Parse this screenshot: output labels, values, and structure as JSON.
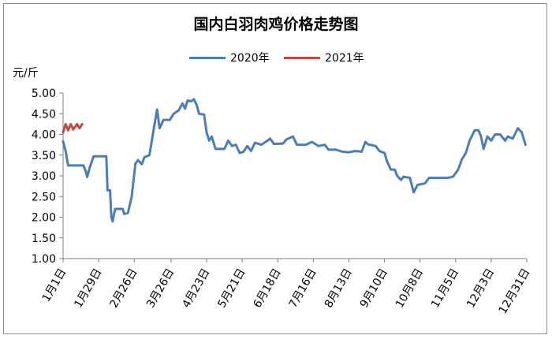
{
  "chart_data": {
    "type": "line",
    "title": "国内白羽肉鸡价格走势图",
    "ylabel": "元/斤",
    "xlabel": "",
    "ylim": [
      1.0,
      5.0
    ],
    "yticks": [
      "1.00",
      "1.50",
      "2.00",
      "2.50",
      "3.00",
      "3.50",
      "4.00",
      "4.50",
      "5.00"
    ],
    "xtick_labels": [
      "1月1日",
      "1月29日",
      "2月26日",
      "3月26日",
      "4月23日",
      "5月21日",
      "6月18日",
      "7月16日",
      "8月13日",
      "9月10日",
      "10月8日",
      "11月5日",
      "12月3日",
      "12月31日"
    ],
    "grid": false,
    "legend_position": "top",
    "series": [
      {
        "name": "2020年",
        "color": "#4a7ebb",
        "points": [
          [
            "1月1日",
            3.83
          ],
          [
            "1月3日",
            3.6
          ],
          [
            "1月5日",
            3.25
          ],
          [
            "1月12日",
            3.25
          ],
          [
            "1月17日",
            3.25
          ],
          [
            "1月19日",
            3.1
          ],
          [
            "1月20日",
            2.97
          ],
          [
            "1月22日",
            3.2
          ],
          [
            "1月25日",
            3.47
          ],
          [
            "1月30日",
            3.47
          ],
          [
            "2月4日",
            3.47
          ],
          [
            "2月5日",
            2.65
          ],
          [
            "2月7日",
            2.65
          ],
          [
            "2月8日",
            2.0
          ],
          [
            "2月9日",
            1.9
          ],
          [
            "2月11日",
            2.2
          ],
          [
            "2月17日",
            2.2
          ],
          [
            "2月18日",
            2.08
          ],
          [
            "2月21日",
            2.1
          ],
          [
            "2月24日",
            2.5
          ],
          [
            "2月27日",
            3.3
          ],
          [
            "2月29日",
            3.38
          ],
          [
            "3月3日",
            3.28
          ],
          [
            "3月5日",
            3.45
          ],
          [
            "3月9日",
            3.5
          ],
          [
            "3月13日",
            4.25
          ],
          [
            "3月15日",
            4.6
          ],
          [
            "3月17日",
            4.15
          ],
          [
            "3月20日",
            4.35
          ],
          [
            "3月25日",
            4.35
          ],
          [
            "3月28日",
            4.5
          ],
          [
            "4月1日",
            4.58
          ],
          [
            "4月4日",
            4.75
          ],
          [
            "4月6日",
            4.62
          ],
          [
            "4月8日",
            4.82
          ],
          [
            "4月11日",
            4.8
          ],
          [
            "4月13日",
            4.85
          ],
          [
            "4月15日",
            4.72
          ],
          [
            "4月17日",
            4.5
          ],
          [
            "4月21日",
            4.48
          ],
          [
            "4月23日",
            4.05
          ],
          [
            "4月25日",
            3.85
          ],
          [
            "4月27日",
            3.95
          ],
          [
            "4月30日",
            3.65
          ],
          [
            "5月7日",
            3.65
          ],
          [
            "5月10日",
            3.85
          ],
          [
            "5月13日",
            3.72
          ],
          [
            "5月16日",
            3.75
          ],
          [
            "5月19日",
            3.55
          ],
          [
            "5月22日",
            3.58
          ],
          [
            "5月25日",
            3.72
          ],
          [
            "5月28日",
            3.6
          ],
          [
            "5月31日",
            3.8
          ],
          [
            "6月5日",
            3.75
          ],
          [
            "6月10日",
            3.85
          ],
          [
            "6月12日",
            3.9
          ],
          [
            "6月15日",
            3.77
          ],
          [
            "6月22日",
            3.78
          ],
          [
            "6月25日",
            3.88
          ],
          [
            "6月30日",
            3.95
          ],
          [
            "7月3日",
            3.75
          ],
          [
            "7月10日",
            3.75
          ],
          [
            "7月15日",
            3.82
          ],
          [
            "7月20日",
            3.72
          ],
          [
            "7月25日",
            3.75
          ],
          [
            "7月28日",
            3.63
          ],
          [
            "8月3日",
            3.63
          ],
          [
            "8月8日",
            3.58
          ],
          [
            "8月13日",
            3.57
          ],
          [
            "8月18日",
            3.6
          ],
          [
            "8月23日",
            3.58
          ],
          [
            "8月26日",
            3.82
          ],
          [
            "8月28日",
            3.76
          ],
          [
            "9月3日",
            3.72
          ],
          [
            "9月6日",
            3.6
          ],
          [
            "9月10日",
            3.55
          ],
          [
            "9月12日",
            3.35
          ],
          [
            "9月15日",
            3.15
          ],
          [
            "9月18日",
            3.15
          ],
          [
            "9月20日",
            3.0
          ],
          [
            "9月23日",
            2.9
          ],
          [
            "9月25日",
            2.98
          ],
          [
            "9月30日",
            2.95
          ],
          [
            "10月3日",
            2.6
          ],
          [
            "10月6日",
            2.78
          ],
          [
            "10月12日",
            2.82
          ],
          [
            "10月15日",
            2.95
          ],
          [
            "10月23日",
            2.95
          ],
          [
            "10月30日",
            2.95
          ],
          [
            "11月3日",
            2.98
          ],
          [
            "11月7日",
            3.15
          ],
          [
            "11月10日",
            3.4
          ],
          [
            "11月13日",
            3.55
          ],
          [
            "11月16日",
            3.85
          ],
          [
            "11月20日",
            4.1
          ],
          [
            "11月23日",
            4.1
          ],
          [
            "11月25日",
            3.95
          ],
          [
            "11月27日",
            3.65
          ],
          [
            "11月30日",
            3.95
          ],
          [
            "12月3日",
            3.85
          ],
          [
            "12月6日",
            4.0
          ],
          [
            "12月10日",
            4.0
          ],
          [
            "12月14日",
            3.85
          ],
          [
            "12月16日",
            3.95
          ],
          [
            "12月20日",
            3.9
          ],
          [
            "12月24日",
            4.15
          ],
          [
            "12月27日",
            4.05
          ],
          [
            "12月30日",
            3.75
          ]
        ]
      },
      {
        "name": "2021年",
        "color": "#be4b48",
        "points": [
          [
            "1月1日",
            4.05
          ],
          [
            "1月3日",
            4.25
          ],
          [
            "1月5日",
            4.1
          ],
          [
            "1月7日",
            4.25
          ],
          [
            "1月9日",
            4.12
          ],
          [
            "1月12日",
            4.25
          ],
          [
            "1月14日",
            4.15
          ],
          [
            "1月16日",
            4.25
          ]
        ]
      }
    ]
  }
}
